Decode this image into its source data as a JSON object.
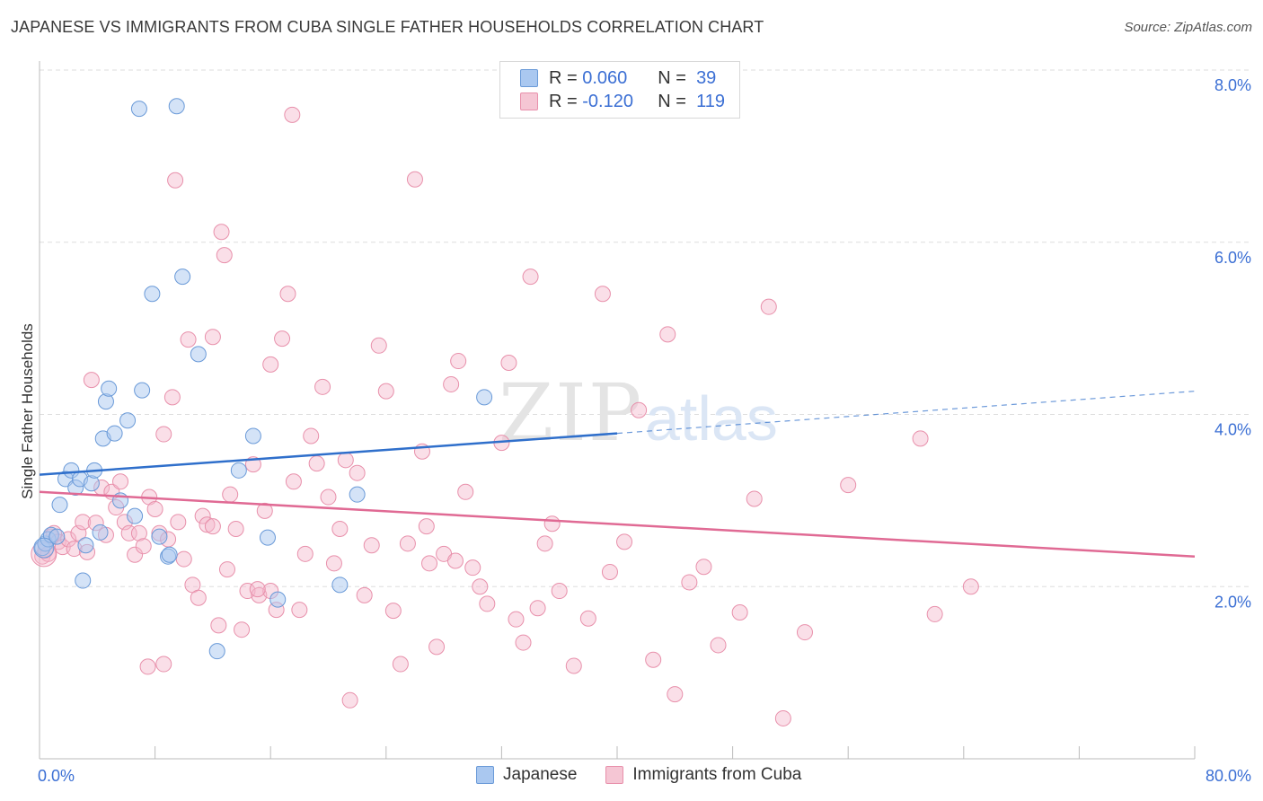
{
  "header": {
    "title": "JAPANESE VS IMMIGRANTS FROM CUBA SINGLE FATHER HOUSEHOLDS CORRELATION CHART",
    "source": "Source: ZipAtlas.com"
  },
  "legend": {
    "rows": [
      {
        "r_label": "R =",
        "r_value": "0.060",
        "n_label": "N =",
        "n_value": "39"
      },
      {
        "r_label": "R =",
        "r_value": "-0.120",
        "n_label": "N =",
        "n_value": "119"
      }
    ]
  },
  "colors": {
    "japanese_fill": "#aac8f0",
    "japanese_stroke": "#6a9ad8",
    "japanese_line": "#2f6fcb",
    "cuba_fill": "#f5b8cb",
    "cuba_stroke": "#e890ab",
    "cuba_line": "#e06a94",
    "tick_label": "#3b6fd4",
    "grid": "#dddddd"
  },
  "chart_data": {
    "type": "scatter",
    "title": "JAPANESE VS IMMIGRANTS FROM CUBA SINGLE FATHER HOUSEHOLDS CORRELATION CHART",
    "xlabel": "",
    "ylabel": "Single Father Households",
    "xlim": [
      0,
      80
    ],
    "ylim": [
      0,
      8
    ],
    "x_tick_labels": [
      "0.0%",
      "80.0%"
    ],
    "y_ticks": [
      2,
      4,
      6,
      8
    ],
    "y_tick_labels": [
      "2.0%",
      "4.0%",
      "6.0%",
      "8.0%"
    ],
    "grid": true,
    "legend_position": "top-center",
    "series": [
      {
        "name": "Japanese",
        "r": 0.06,
        "n": 39,
        "trend": {
          "x": [
            0,
            40,
            80
          ],
          "y": [
            3.3,
            3.78,
            4.27
          ],
          "solid_until": 40
        },
        "points": [
          [
            0.2,
            2.45
          ],
          [
            0.4,
            2.5
          ],
          [
            0.6,
            2.55
          ],
          [
            0.8,
            2.6
          ],
          [
            1.2,
            2.58
          ],
          [
            1.4,
            2.95
          ],
          [
            1.8,
            3.25
          ],
          [
            2.2,
            3.35
          ],
          [
            2.5,
            3.15
          ],
          [
            2.8,
            3.25
          ],
          [
            3.2,
            2.48
          ],
          [
            3.0,
            2.07
          ],
          [
            3.6,
            3.2
          ],
          [
            3.8,
            3.35
          ],
          [
            4.2,
            2.63
          ],
          [
            4.4,
            3.72
          ],
          [
            4.6,
            4.15
          ],
          [
            4.8,
            4.3
          ],
          [
            5.2,
            3.78
          ],
          [
            5.6,
            3.0
          ],
          [
            6.1,
            3.93
          ],
          [
            6.6,
            2.82
          ],
          [
            6.9,
            7.55
          ],
          [
            7.1,
            4.28
          ],
          [
            7.8,
            5.4
          ],
          [
            8.3,
            2.58
          ],
          [
            8.9,
            2.35
          ],
          [
            9.0,
            2.37
          ],
          [
            9.5,
            7.58
          ],
          [
            9.9,
            5.6
          ],
          [
            11.0,
            4.7
          ],
          [
            12.3,
            1.25
          ],
          [
            13.8,
            3.35
          ],
          [
            14.8,
            3.75
          ],
          [
            15.8,
            2.57
          ],
          [
            16.5,
            1.85
          ],
          [
            20.8,
            2.02
          ],
          [
            22.0,
            3.07
          ],
          [
            30.8,
            4.2
          ]
        ]
      },
      {
        "name": "Immigrants from Cuba",
        "r": -0.12,
        "n": 119,
        "trend": {
          "x": [
            0,
            80
          ],
          "y": [
            3.1,
            2.35
          ]
        },
        "points": [
          [
            0.2,
            2.35
          ],
          [
            0.4,
            2.42
          ],
          [
            0.6,
            2.38
          ],
          [
            0.8,
            2.58
          ],
          [
            1.0,
            2.62
          ],
          [
            1.3,
            2.52
          ],
          [
            1.6,
            2.46
          ],
          [
            2.0,
            2.55
          ],
          [
            2.4,
            2.44
          ],
          [
            2.7,
            2.62
          ],
          [
            3.0,
            2.75
          ],
          [
            3.3,
            2.4
          ],
          [
            3.6,
            4.4
          ],
          [
            3.9,
            2.74
          ],
          [
            4.3,
            3.15
          ],
          [
            4.6,
            2.6
          ],
          [
            5.0,
            3.1
          ],
          [
            5.3,
            2.92
          ],
          [
            5.6,
            3.22
          ],
          [
            5.9,
            2.75
          ],
          [
            6.2,
            2.62
          ],
          [
            6.6,
            2.37
          ],
          [
            6.9,
            2.62
          ],
          [
            7.2,
            2.47
          ],
          [
            7.6,
            3.04
          ],
          [
            8.0,
            2.9
          ],
          [
            8.3,
            2.62
          ],
          [
            8.6,
            3.77
          ],
          [
            8.9,
            2.55
          ],
          [
            9.2,
            4.2
          ],
          [
            9.6,
            2.75
          ],
          [
            10.0,
            2.32
          ],
          [
            10.3,
            4.87
          ],
          [
            10.6,
            2.02
          ],
          [
            11.0,
            1.87
          ],
          [
            11.3,
            2.82
          ],
          [
            11.6,
            2.72
          ],
          [
            12.0,
            4.9
          ],
          [
            12.4,
            1.55
          ],
          [
            12.8,
            5.85
          ],
          [
            12.6,
            6.12
          ],
          [
            13.0,
            2.2
          ],
          [
            13.2,
            3.07
          ],
          [
            13.6,
            2.67
          ],
          [
            14.0,
            1.5
          ],
          [
            14.4,
            1.95
          ],
          [
            14.8,
            3.42
          ],
          [
            15.2,
            1.9
          ],
          [
            15.6,
            2.88
          ],
          [
            16.0,
            4.58
          ],
          [
            16.4,
            1.73
          ],
          [
            16.8,
            4.88
          ],
          [
            17.2,
            5.4
          ],
          [
            17.6,
            3.22
          ],
          [
            18.0,
            1.73
          ],
          [
            18.4,
            2.38
          ],
          [
            18.8,
            3.75
          ],
          [
            19.2,
            3.43
          ],
          [
            19.6,
            4.32
          ],
          [
            20.0,
            3.04
          ],
          [
            20.4,
            2.27
          ],
          [
            20.8,
            2.67
          ],
          [
            21.2,
            3.47
          ],
          [
            22.0,
            3.32
          ],
          [
            22.5,
            1.9
          ],
          [
            23.0,
            2.48
          ],
          [
            23.5,
            4.8
          ],
          [
            24.0,
            4.27
          ],
          [
            24.5,
            1.72
          ],
          [
            25.0,
            1.1
          ],
          [
            25.5,
            2.5
          ],
          [
            26.0,
            6.73
          ],
          [
            26.5,
            3.57
          ],
          [
            27.0,
            2.27
          ],
          [
            27.5,
            1.3
          ],
          [
            28.0,
            2.38
          ],
          [
            28.5,
            4.35
          ],
          [
            29.0,
            4.62
          ],
          [
            29.5,
            3.1
          ],
          [
            30.0,
            2.22
          ],
          [
            30.5,
            2.0
          ],
          [
            31.0,
            1.8
          ],
          [
            32.0,
            3.67
          ],
          [
            32.5,
            4.6
          ],
          [
            33.0,
            1.62
          ],
          [
            33.5,
            1.35
          ],
          [
            34.0,
            5.6
          ],
          [
            34.5,
            1.75
          ],
          [
            35.0,
            2.5
          ],
          [
            35.5,
            2.73
          ],
          [
            36.0,
            1.95
          ],
          [
            37.0,
            1.08
          ],
          [
            38.0,
            1.63
          ],
          [
            39.0,
            5.4
          ],
          [
            39.5,
            2.17
          ],
          [
            40.5,
            2.52
          ],
          [
            41.5,
            4.05
          ],
          [
            42.5,
            1.15
          ],
          [
            43.5,
            4.93
          ],
          [
            44.0,
            0.75
          ],
          [
            45.0,
            2.05
          ],
          [
            46.0,
            2.23
          ],
          [
            47.0,
            1.32
          ],
          [
            48.5,
            1.7
          ],
          [
            49.5,
            3.02
          ],
          [
            50.5,
            5.25
          ],
          [
            51.5,
            0.47
          ],
          [
            53.0,
            1.47
          ],
          [
            56.0,
            3.18
          ],
          [
            61.0,
            3.72
          ],
          [
            62.0,
            1.68
          ],
          [
            64.5,
            2.0
          ],
          [
            7.5,
            1.07
          ],
          [
            8.6,
            1.1
          ],
          [
            9.4,
            6.72
          ],
          [
            16.0,
            1.95
          ],
          [
            12.0,
            2.7
          ],
          [
            15.1,
            1.97
          ],
          [
            17.5,
            7.48
          ],
          [
            26.8,
            2.7
          ],
          [
            28.8,
            2.3
          ],
          [
            21.5,
            0.68
          ]
        ]
      }
    ]
  }
}
